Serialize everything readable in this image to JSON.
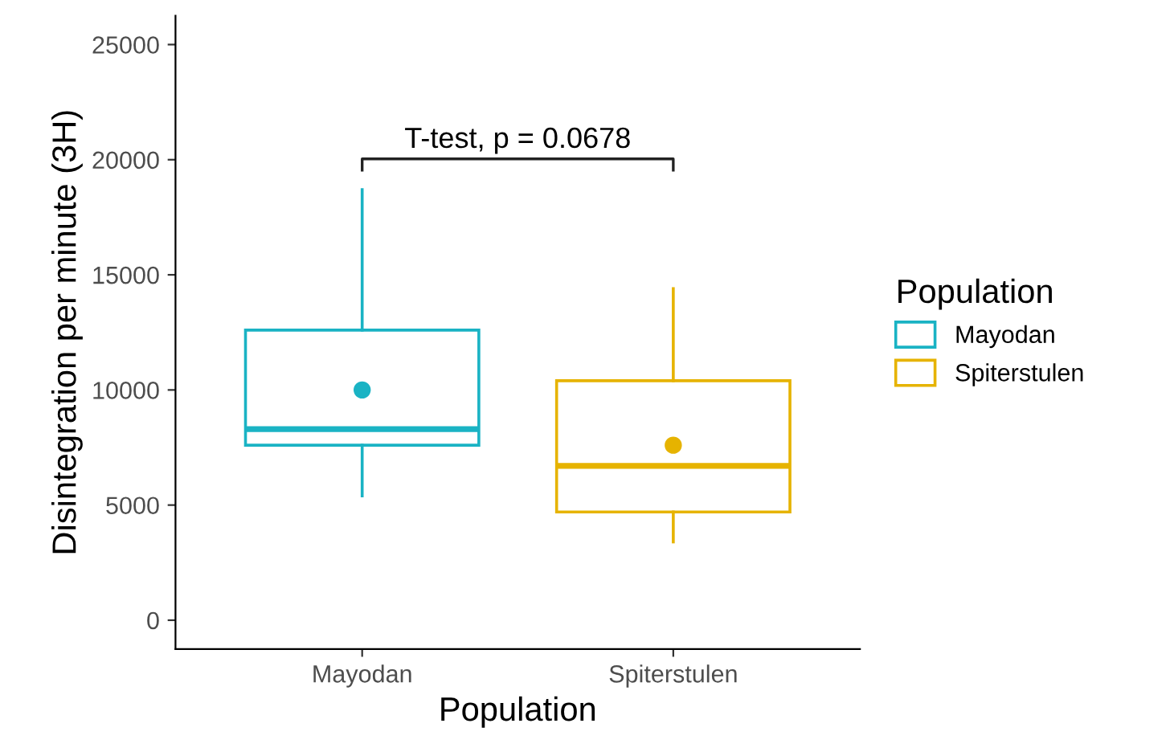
{
  "chart_data": {
    "type": "box",
    "xlabel": "Population",
    "ylabel": "Disintegration per minute (3H)",
    "legend_title": "Population",
    "categories": [
      "Mayodan",
      "Spiterstulen"
    ],
    "series": [
      {
        "name": "Mayodan",
        "color": "#1ab3c4",
        "boxes": [
          {
            "low": 5400,
            "q1": 7600,
            "median": 8300,
            "q3": 12600,
            "high": 18700,
            "mean": 10000
          },
          null
        ]
      },
      {
        "name": "Spiterstulen",
        "color": "#e6b300",
        "boxes": [
          null,
          {
            "low": 3400,
            "q1": 4700,
            "median": 6700,
            "q3": 10400,
            "high": 14400,
            "mean": 7600
          }
        ]
      }
    ],
    "ylim": [
      -1250,
      26250
    ],
    "yticks": [
      0,
      5000,
      10000,
      15000,
      20000,
      25000
    ],
    "grid": false,
    "legend": "right",
    "annotations": [
      "T-test, p = 0.0678"
    ]
  }
}
